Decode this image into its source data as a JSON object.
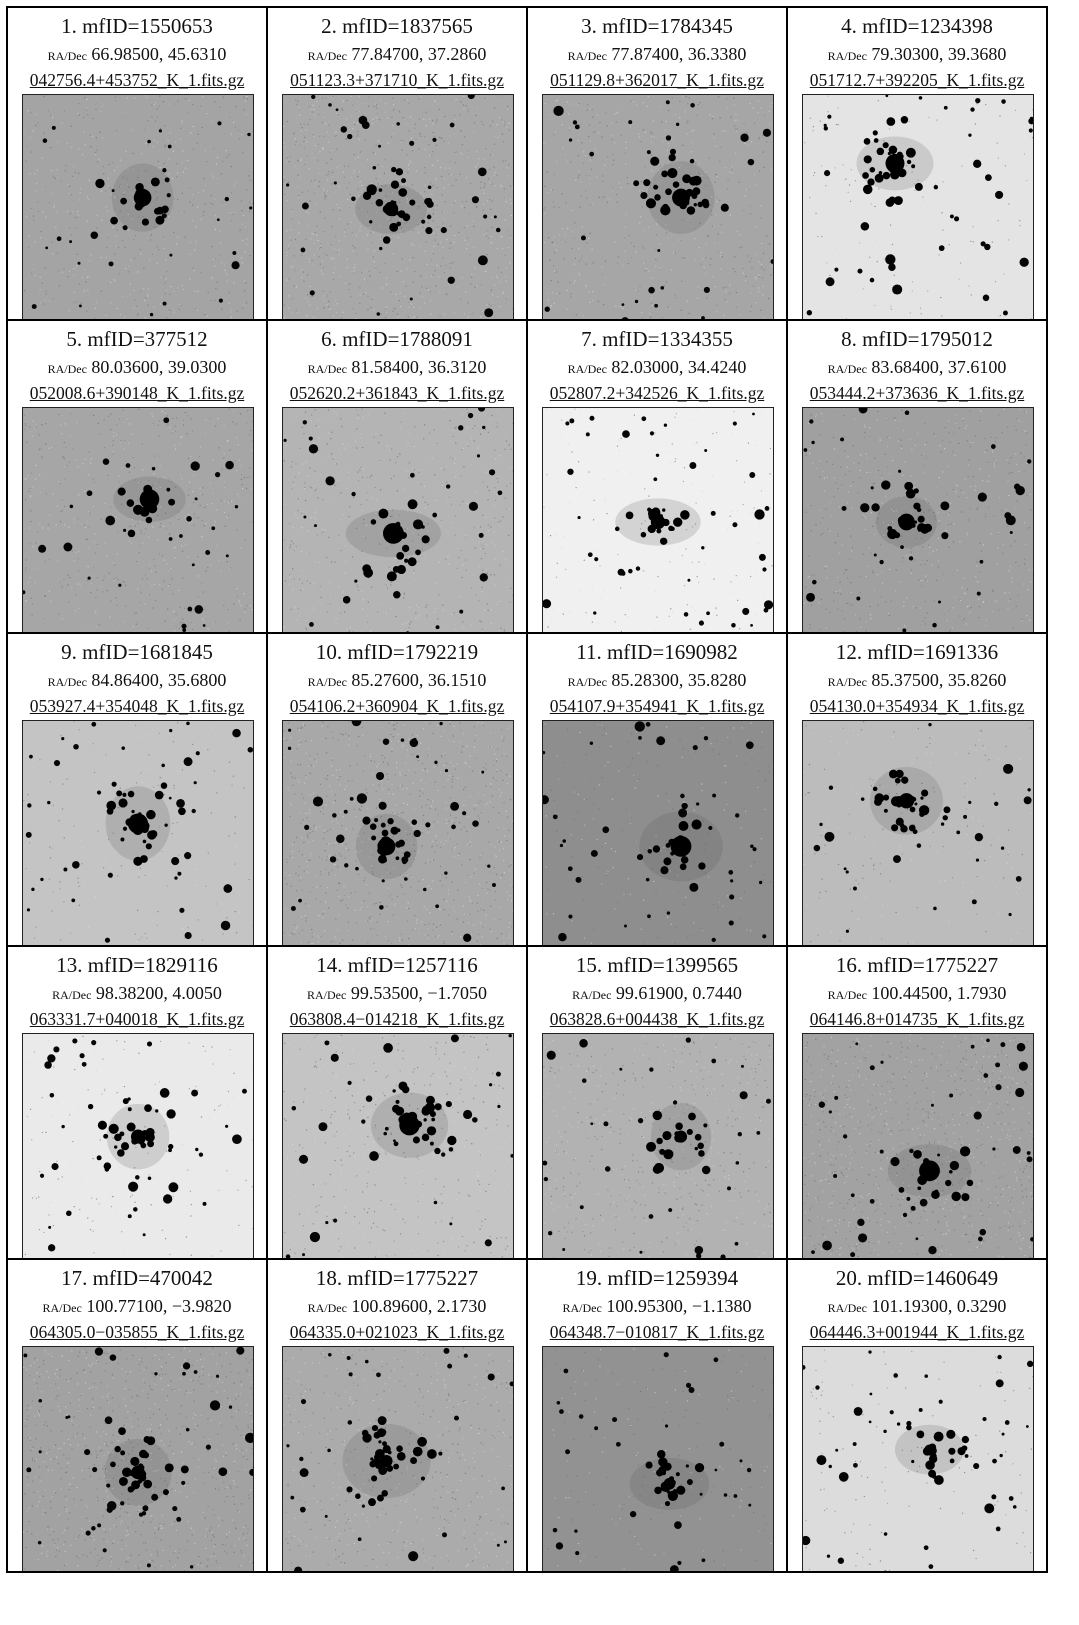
{
  "panels": [
    {
      "index": "1.",
      "title": "1. mfID=1550653",
      "radec_label": "RA/Dec",
      "radec": "66.98500, 45.6310",
      "file": "042756.4+453752_K_1.fits.gz",
      "bg": "#a4a4a4",
      "noise": "medium"
    },
    {
      "index": "2.",
      "title": "2. mfID=1837565",
      "radec_label": "RA/Dec",
      "radec": "77.84700, 37.2860",
      "file": "051123.3+371710_K_1.fits.gz",
      "bg": "#a8a8a8",
      "noise": "high"
    },
    {
      "index": "3.",
      "title": "3. mfID=1784345",
      "radec_label": "RA/Dec",
      "radec": "77.87400, 36.3380",
      "file": "051129.8+362017_K_1.fits.gz",
      "bg": "#a6a6a6",
      "noise": "medium"
    },
    {
      "index": "4.",
      "title": "4. mfID=1234398",
      "radec_label": "RA/Dec",
      "radec": "79.30300, 39.3680",
      "file": "051712.7+392205_K_1.fits.gz",
      "bg": "#e4e4e4",
      "noise": "low"
    },
    {
      "index": "5.",
      "title": "5. mfID=377512",
      "radec_label": "RA/Dec",
      "radec": "80.03600, 39.0300",
      "file": "052008.6+390148_K_1.fits.gz",
      "bg": "#a6a6a6",
      "noise": "medium"
    },
    {
      "index": "6.",
      "title": "6. mfID=1788091",
      "radec_label": "RA/Dec",
      "radec": "81.58400, 36.3120",
      "file": "052620.2+361843_K_1.fits.gz",
      "bg": "#b4b4b4",
      "noise": "medium"
    },
    {
      "index": "7.",
      "title": "7. mfID=1334355",
      "radec_label": "RA/Dec",
      "radec": "82.03000, 34.4240",
      "file": "052807.2+342526_K_1.fits.gz",
      "bg": "#f0f0f0",
      "noise": "low"
    },
    {
      "index": "8.",
      "title": "8. mfID=1795012",
      "radec_label": "RA/Dec",
      "radec": "83.68400, 37.6100",
      "file": "053444.2+373636_K_1.fits.gz",
      "bg": "#a0a0a0",
      "noise": "medium"
    },
    {
      "index": "9.",
      "title": "9. mfID=1681845",
      "radec_label": "RA/Dec",
      "radec": "84.86400, 35.6800",
      "file": "053927.4+354048_K_1.fits.gz",
      "bg": "#c4c4c4",
      "noise": "low"
    },
    {
      "index": "10.",
      "title": "10. mfID=1792219",
      "radec_label": "RA/Dec",
      "radec": "85.27600, 36.1510",
      "file": "054106.2+360904_K_1.fits.gz",
      "bg": "#a8a8a8",
      "noise": "high"
    },
    {
      "index": "11.",
      "title": "11. mfID=1690982",
      "radec_label": "RA/Dec",
      "radec": "85.28300, 35.8280",
      "file": "054107.9+354941_K_1.fits.gz",
      "bg": "#8e8e8e",
      "noise": "low"
    },
    {
      "index": "12.",
      "title": "12. mfID=1691336",
      "radec_label": "RA/Dec",
      "radec": "85.37500, 35.8260",
      "file": "054130.0+354934_K_1.fits.gz",
      "bg": "#bcbcbc",
      "noise": "low"
    },
    {
      "index": "13.",
      "title": "13. mfID=1829116",
      "radec_label": "RA/Dec",
      "radec": "98.38200, 4.0050",
      "file": "063331.7+040018_K_1.fits.gz",
      "bg": "#eaeaea",
      "noise": "low"
    },
    {
      "index": "14.",
      "title": "14. mfID=1257116",
      "radec_label": "RA/Dec",
      "radec": "99.53500, −1.7050",
      "file": "063808.4−014218_K_1.fits.gz",
      "bg": "#c4c4c4",
      "noise": "medium"
    },
    {
      "index": "15.",
      "title": "15. mfID=1399565",
      "radec_label": "RA/Dec",
      "radec": "99.61900, 0.7440",
      "file": "063828.6+004438_K_1.fits.gz",
      "bg": "#b2b2b2",
      "noise": "medium"
    },
    {
      "index": "16.",
      "title": "16. mfID=1775227",
      "radec_label": "RA/Dec",
      "radec": "100.44500, 1.7930",
      "file": "064146.8+014735_K_1.fits.gz",
      "bg": "#a2a2a2",
      "noise": "high"
    },
    {
      "index": "17.",
      "title": "17. mfID=470042",
      "radec_label": "RA/Dec",
      "radec": "100.77100, −3.9820",
      "file": "064305.0−035855_K_1.fits.gz",
      "bg": "#a2a2a2",
      "noise": "high"
    },
    {
      "index": "18.",
      "title": "18. mfID=1775227",
      "radec_label": "RA/Dec",
      "radec": "100.89600, 2.1730",
      "file": "064335.0+021023_K_1.fits.gz",
      "bg": "#ababab",
      "noise": "medium"
    },
    {
      "index": "19.",
      "title": "19. mfID=1259394",
      "radec_label": "RA/Dec",
      "radec": "100.95300, −1.1380",
      "file": "064348.7−010817_K_1.fits.gz",
      "bg": "#929292",
      "noise": "low"
    },
    {
      "index": "20.",
      "title": "20. mfID=1460649",
      "radec_label": "RA/Dec",
      "radec": "101.19300, 0.3290",
      "file": "064446.3+001944_K_1.fits.gz",
      "bg": "#dcdcdc",
      "noise": "low"
    }
  ]
}
